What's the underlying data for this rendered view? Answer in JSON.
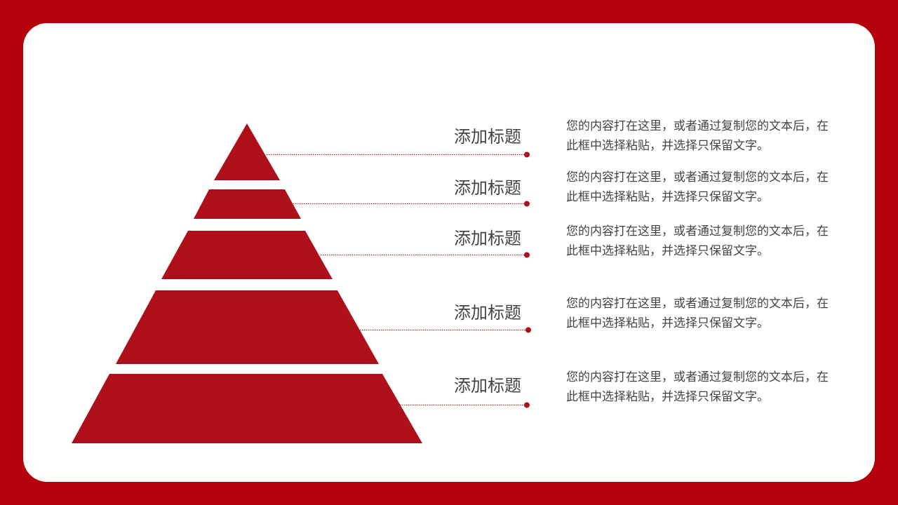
{
  "accent_color": "#ad1018",
  "frame_color": "#b3000c",
  "items": [
    {
      "title": "添加标题",
      "desc": "您的内容打在这里，或者通过复制您的文本后，在此框中选择粘贴，并选择只保留文字。"
    },
    {
      "title": "添加标题",
      "desc": "您的内容打在这里，或者通过复制您的文本后，在此框中选择粘贴，并选择只保留文字。"
    },
    {
      "title": "添加标题",
      "desc": "您的内容打在这里，或者通过复制您的文本后，在此框中选择粘贴，并选择只保留文字。"
    },
    {
      "title": "添加标题",
      "desc": "您的内容打在这里，或者通过复制您的文本后，在此框中选择粘贴，并选择只保留文字。"
    },
    {
      "title": "添加标题",
      "desc": "您的内容打在这里，或者通过复制您的文本后，在此框中选择粘贴，并选择只保留文字。"
    }
  ]
}
